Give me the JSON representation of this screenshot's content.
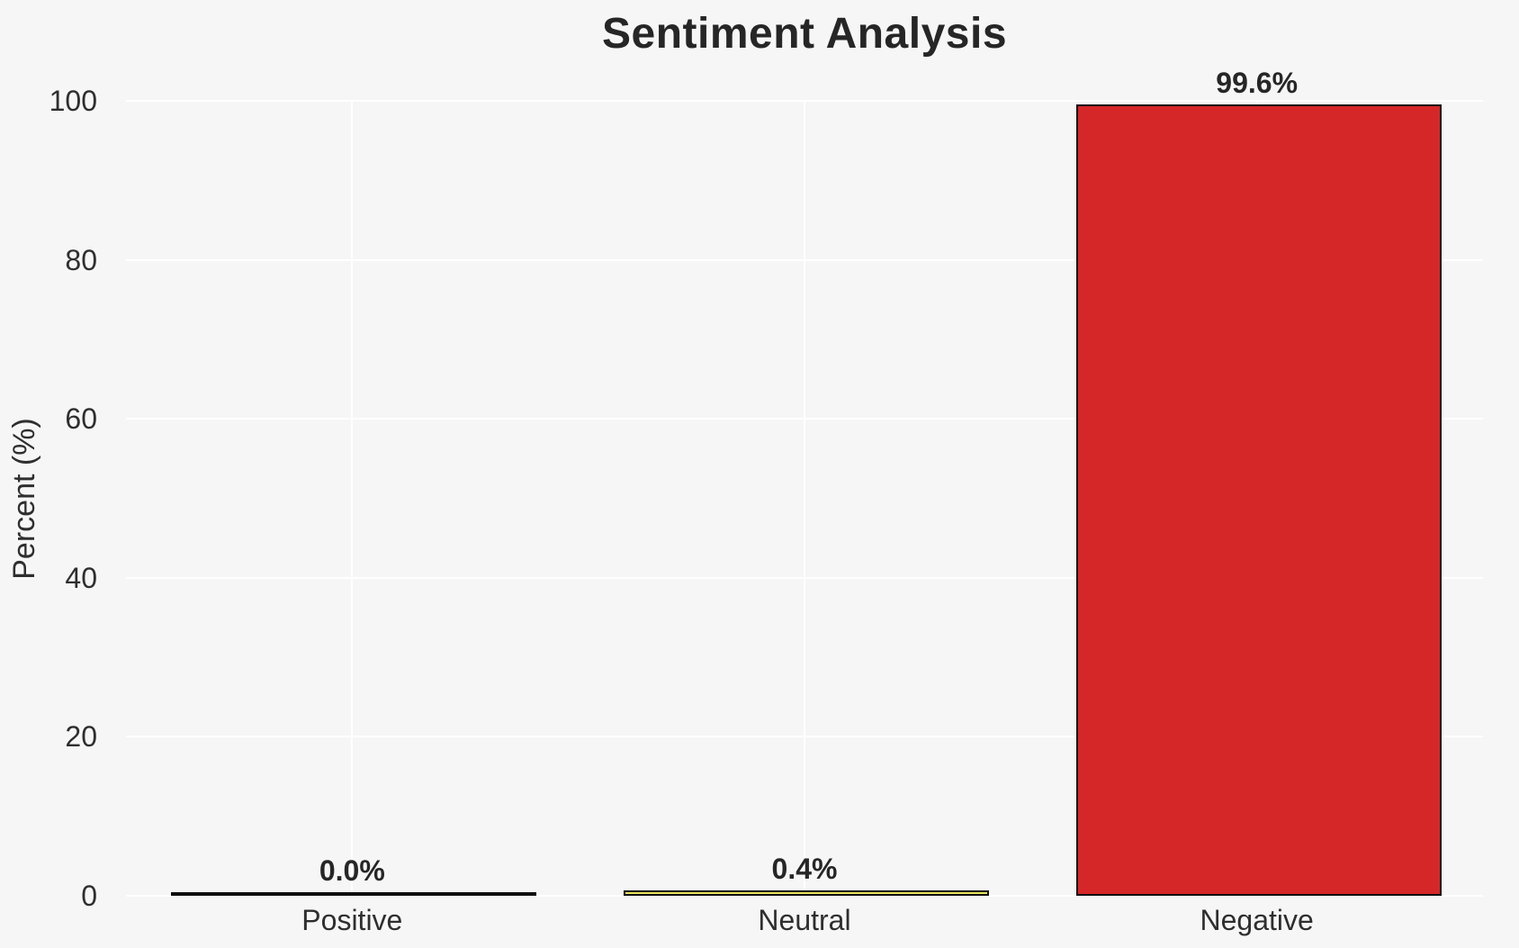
{
  "chart_data": {
    "type": "bar",
    "title": "Sentiment Analysis",
    "ylabel": "Percent (%)",
    "xlabel": "",
    "categories": [
      "Positive",
      "Neutral",
      "Negative"
    ],
    "values": [
      0.0,
      0.4,
      99.6
    ],
    "value_labels": [
      "0.0%",
      "0.4%",
      "99.6%"
    ],
    "bar_colors": [
      "#2ca02c",
      "#e9e35b",
      "#d62728"
    ],
    "bar_edge_color": "#0f0f0f",
    "ylim": [
      0,
      100
    ],
    "yticks": [
      0,
      20,
      40,
      60,
      80,
      100
    ],
    "grid": "on",
    "legend_position": "none",
    "colors": {
      "background": "#f6f6f6",
      "gridline": "#ffffff",
      "text": "#2e2e2e",
      "title": "#262626"
    }
  }
}
